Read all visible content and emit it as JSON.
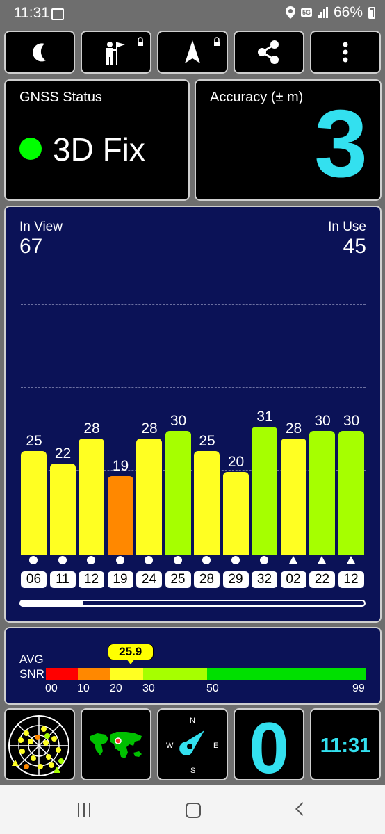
{
  "status_bar": {
    "time": "11:31",
    "network": "5G",
    "battery": "66%"
  },
  "toolbar": {
    "items": [
      {
        "name": "night-mode",
        "icon": "moon-icon"
      },
      {
        "name": "location-tools",
        "icon": "person-flag-icon"
      },
      {
        "name": "navigation",
        "icon": "navigation-arrow-icon"
      },
      {
        "name": "share",
        "icon": "share-icon"
      },
      {
        "name": "more",
        "icon": "more-vert-icon"
      }
    ]
  },
  "gnss_status": {
    "label": "GNSS Status",
    "value": "3D Fix",
    "indicator_color": "#00ff00"
  },
  "accuracy": {
    "label": "Accuracy (± m)",
    "value": "3"
  },
  "satellites": {
    "in_view_label": "In View",
    "in_view": "67",
    "in_use_label": "In Use",
    "in_use": "45",
    "list": [
      {
        "prn": "06",
        "snr": 25,
        "constellation": "dot",
        "color": "#ffff22"
      },
      {
        "prn": "11",
        "snr": 22,
        "constellation": "dot",
        "color": "#ffff22"
      },
      {
        "prn": "12",
        "snr": 28,
        "constellation": "dot",
        "color": "#ffff22"
      },
      {
        "prn": "19",
        "snr": 19,
        "constellation": "dot",
        "color": "#ff8800"
      },
      {
        "prn": "24",
        "snr": 28,
        "constellation": "dot",
        "color": "#ffff22"
      },
      {
        "prn": "25",
        "snr": 30,
        "constellation": "dot",
        "color": "#a6ff00"
      },
      {
        "prn": "28",
        "snr": 25,
        "constellation": "dot",
        "color": "#ffff22"
      },
      {
        "prn": "29",
        "snr": 20,
        "constellation": "dot",
        "color": "#ffff22"
      },
      {
        "prn": "32",
        "snr": 31,
        "constellation": "dot",
        "color": "#a6ff00"
      },
      {
        "prn": "02",
        "snr": 28,
        "constellation": "triangle",
        "color": "#ffff22"
      },
      {
        "prn": "22",
        "snr": 30,
        "constellation": "triangle",
        "color": "#a6ff00"
      },
      {
        "prn": "12",
        "snr": 30,
        "constellation": "triangle",
        "color": "#a6ff00"
      }
    ]
  },
  "snr_scale": {
    "label_line1": "AVG",
    "label_line2": "SNR",
    "avg_value": "25.9",
    "avg_numeric": 25.9,
    "ticks": [
      "00",
      "10",
      "20",
      "30",
      "50",
      "99"
    ],
    "segments": [
      {
        "from": 0,
        "to": 10,
        "color": "#ff0000"
      },
      {
        "from": 10,
        "to": 20,
        "color": "#ff8800"
      },
      {
        "from": 20,
        "to": 30,
        "color": "#ffff22"
      },
      {
        "from": 30,
        "to": 50,
        "color": "#a6ff00"
      },
      {
        "from": 50,
        "to": 99,
        "color": "#00e000"
      }
    ]
  },
  "bottom": {
    "sky_view_icon": "sky-plot-icon",
    "world_map_icon": "world-map-icon",
    "compass": {
      "n": "N",
      "e": "E",
      "s": "S",
      "w": "W"
    },
    "speed_value": "0",
    "clock": "11:31"
  },
  "nav_bar": {
    "recent": "recent-apps-icon",
    "home": "home-icon",
    "back": "back-icon"
  },
  "colors": {
    "accent": "#33e0ef",
    "panel_bg": "#0b1257",
    "chrome": "#6e6e6e"
  }
}
